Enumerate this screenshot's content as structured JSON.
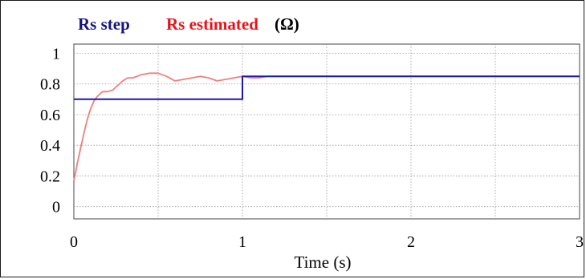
{
  "chart_data": {
    "type": "line",
    "title": "",
    "xlabel": "Time (s)",
    "ylabel": "",
    "xlim": [
      0,
      3
    ],
    "ylim": [
      -0.08,
      1.06
    ],
    "x_ticks": [
      "0",
      "1",
      "2",
      "3"
    ],
    "y_ticks": [
      "0",
      "0.2",
      "0.4",
      "0.6",
      "0.8",
      "1"
    ],
    "x_tick_values": [
      0,
      1,
      2,
      3
    ],
    "y_tick_values": [
      0,
      0.2,
      0.4,
      0.6,
      0.8,
      1
    ],
    "grid": true,
    "legend": {
      "position": "top-left",
      "entries": [
        "Rs step",
        "Rs estimated"
      ],
      "unit": "(Ω)"
    },
    "series": [
      {
        "name": "Rs step",
        "color": "#1a1aa8",
        "x": [
          0,
          1.0,
          1.0,
          3.0
        ],
        "y": [
          0.7,
          0.7,
          0.85,
          0.85
        ]
      },
      {
        "name": "Rs estimated",
        "color": "#f07f7f",
        "x": [
          0.0,
          0.01,
          0.02,
          0.04,
          0.06,
          0.08,
          0.1,
          0.12,
          0.14,
          0.17,
          0.2,
          0.23,
          0.26,
          0.29,
          0.32,
          0.35,
          0.4,
          0.45,
          0.5,
          0.55,
          0.6,
          0.65,
          0.7,
          0.75,
          0.8,
          0.85,
          0.9,
          0.95,
          1.0,
          1.05,
          1.1,
          1.15,
          1.2,
          1.3,
          1.4,
          1.5,
          1.6,
          1.7,
          1.8,
          1.9,
          2.0,
          2.1,
          2.2,
          2.4,
          2.6,
          2.8,
          3.0
        ],
        "y": [
          0.17,
          0.22,
          0.28,
          0.38,
          0.48,
          0.57,
          0.64,
          0.69,
          0.72,
          0.75,
          0.75,
          0.76,
          0.79,
          0.82,
          0.84,
          0.84,
          0.86,
          0.87,
          0.87,
          0.85,
          0.82,
          0.83,
          0.84,
          0.85,
          0.84,
          0.82,
          0.83,
          0.84,
          0.85,
          0.84,
          0.84,
          0.85,
          0.85,
          0.85,
          0.85,
          0.85,
          0.85,
          0.85,
          0.85,
          0.85,
          0.85,
          0.85,
          0.85,
          0.85,
          0.85,
          0.85,
          0.85
        ]
      }
    ]
  }
}
